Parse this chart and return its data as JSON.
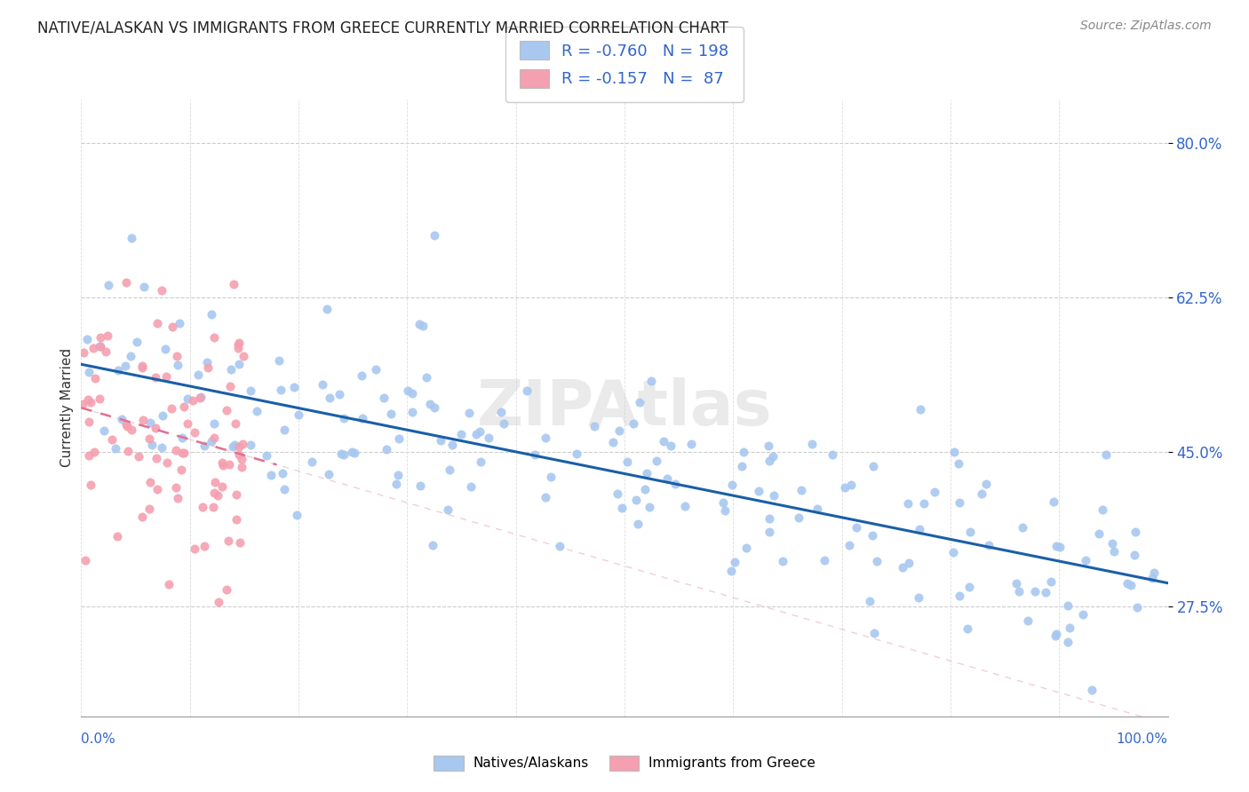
{
  "title": "NATIVE/ALASKAN VS IMMIGRANTS FROM GREECE CURRENTLY MARRIED CORRELATION CHART",
  "source": "Source: ZipAtlas.com",
  "ylabel": "Currently Married",
  "blue_R": -0.76,
  "blue_N": 198,
  "pink_R": -0.157,
  "pink_N": 87,
  "blue_color": "#a8c8f0",
  "pink_color": "#f5a0b0",
  "blue_line_color": "#1a5fa8",
  "pink_line_color": "#e07090",
  "watermark": "ZIPAtlas",
  "title_fontsize": 12,
  "source_fontsize": 10,
  "legend_fontsize": 12,
  "y_ticks": [
    27.5,
    45.0,
    62.5,
    80.0
  ],
  "ylim": [
    15,
    85
  ],
  "xlim": [
    0,
    100
  ]
}
